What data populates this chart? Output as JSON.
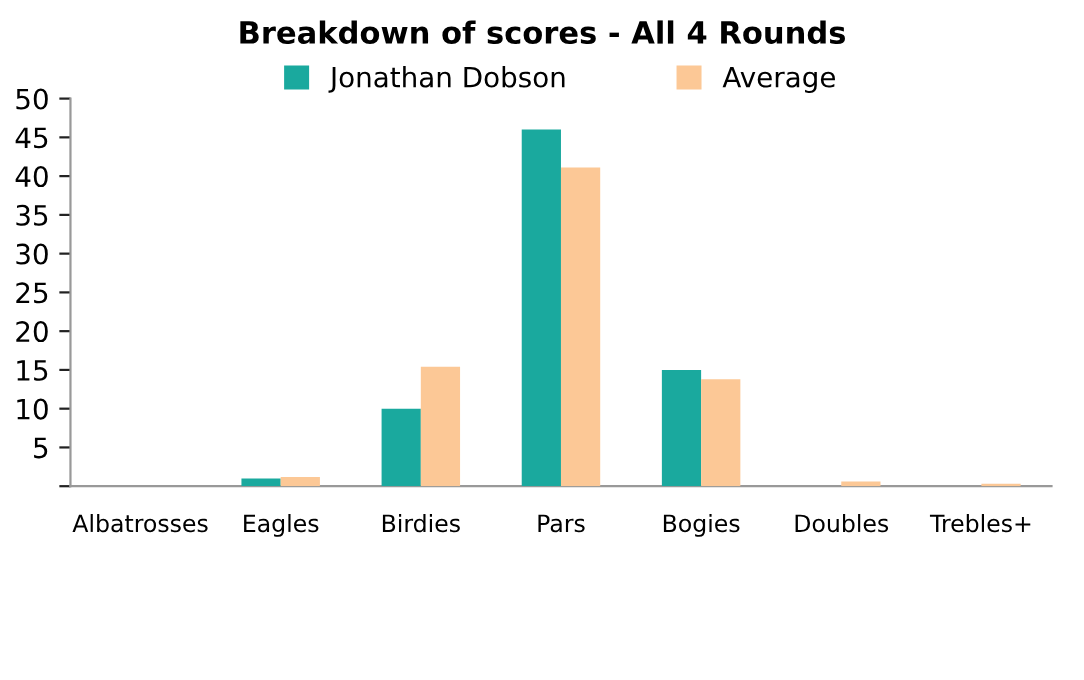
{
  "chart_data": {
    "type": "bar",
    "title": "Breakdown of scores - All 4 Rounds",
    "categories": [
      "Albatrosses",
      "Eagles",
      "Birdies",
      "Pars",
      "Bogies",
      "Doubles",
      "Trebles+"
    ],
    "series": [
      {
        "name": "Jonathan Dobson",
        "color": "#1aa99e",
        "values": [
          0,
          1,
          10,
          46,
          15,
          0,
          0
        ]
      },
      {
        "name": "Average",
        "color": "#fcc896",
        "values": [
          0,
          1.2,
          15.4,
          41.1,
          13.8,
          0.6,
          0.3
        ]
      }
    ],
    "ylim": [
      0,
      50
    ],
    "yticks": [
      {
        "value": 0,
        "label": null
      },
      5,
      10,
      15,
      20,
      25,
      30,
      35,
      40,
      45,
      50
    ],
    "grid": false,
    "legend": "top"
  }
}
